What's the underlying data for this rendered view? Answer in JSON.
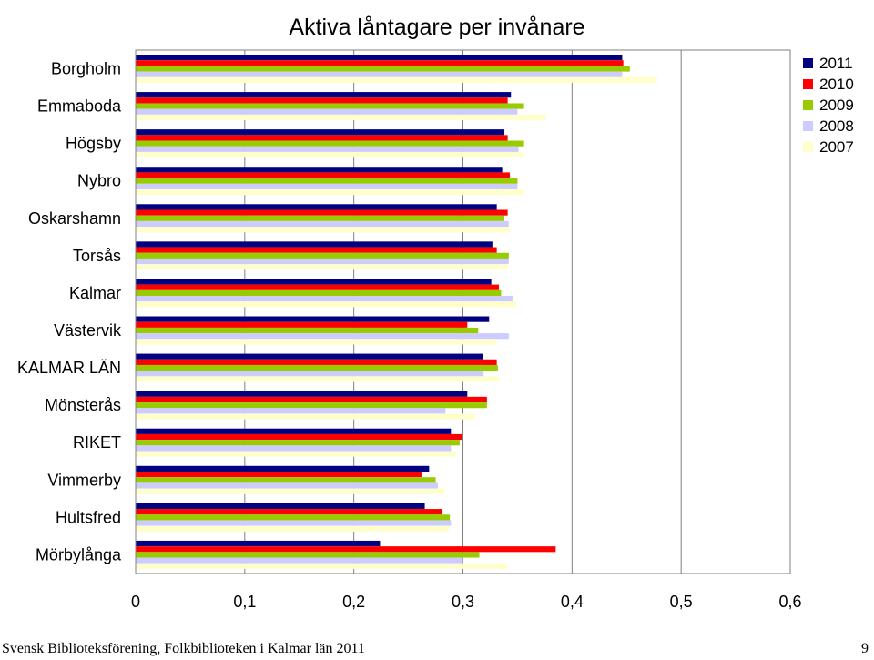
{
  "chart_data": {
    "type": "bar",
    "orientation": "horizontal",
    "title": "Aktiva låntagare per invånare",
    "categories": [
      "Borgholm",
      "Emmaboda",
      "Högsby",
      "Nybro",
      "Oskarshamn",
      "Torsås",
      "Kalmar",
      "Västervik",
      "KALMAR LÄN",
      "Mönsterås",
      "RIKET",
      "Vimmerby",
      "Hultsfred",
      "Mörbylånga"
    ],
    "series": [
      {
        "name": "2011",
        "color": "#000080",
        "values": [
          0.446,
          0.344,
          0.338,
          0.336,
          0.331,
          0.327,
          0.326,
          0.324,
          0.318,
          0.304,
          0.289,
          0.269,
          0.265,
          0.224
        ]
      },
      {
        "name": "2010",
        "color": "#ff0000",
        "values": [
          0.447,
          0.341,
          0.341,
          0.343,
          0.341,
          0.331,
          0.333,
          0.304,
          0.331,
          0.322,
          0.299,
          0.262,
          0.281,
          0.385
        ]
      },
      {
        "name": "2009",
        "color": "#99cc00",
        "values": [
          0.453,
          0.356,
          0.356,
          0.35,
          0.338,
          0.342,
          0.335,
          0.314,
          0.332,
          0.322,
          0.297,
          0.275,
          0.288,
          0.315
        ]
      },
      {
        "name": "2008",
        "color": "#ccccff",
        "values": [
          0.446,
          0.35,
          0.351,
          0.35,
          0.342,
          0.342,
          0.346,
          0.342,
          0.319,
          0.284,
          0.289,
          0.277,
          0.289,
          0.3
        ]
      },
      {
        "name": "2007",
        "color": "#ffffcc",
        "values": [
          0.478,
          0.376,
          0.356,
          0.356,
          0.343,
          0.341,
          0.349,
          0.331,
          0.333,
          0.311,
          0.294,
          0.283,
          0.287,
          0.341
        ]
      }
    ],
    "xlim": [
      0,
      0.6
    ],
    "xticks": [
      "0",
      "0,1",
      "0,2",
      "0,3",
      "0,4",
      "0,5",
      "0,6"
    ],
    "grid": true,
    "legend_position": "top-right"
  },
  "footer": {
    "left": "Svensk Biblioteksförening, Folkbiblioteken i Kalmar län 2011",
    "page_number": "9"
  }
}
